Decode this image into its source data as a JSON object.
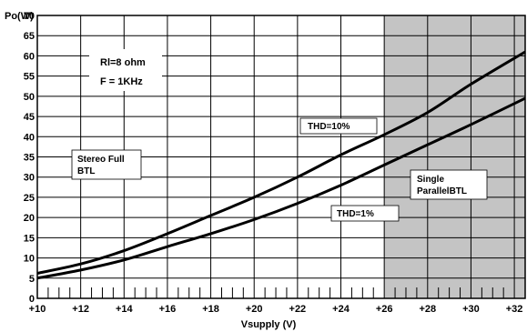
{
  "chart_data": {
    "type": "line",
    "xlabel": "Vsupply (V)",
    "ylabel": "Po(W)",
    "xlim": [
      10,
      32.5
    ],
    "ylim": [
      0,
      70
    ],
    "x_ticks": [
      10,
      12,
      14,
      16,
      18,
      20,
      22,
      24,
      26,
      28,
      30,
      32
    ],
    "x_tick_labels": [
      "+10",
      "+12",
      "+14",
      "+16",
      "+18",
      "+20",
      "+22",
      "+24",
      "+26",
      "+28",
      "+30",
      "+32"
    ],
    "y_ticks": [
      0,
      5,
      10,
      15,
      20,
      25,
      30,
      35,
      40,
      45,
      50,
      55,
      60,
      65,
      70
    ],
    "y_tick_labels": [
      "0",
      "5",
      "10",
      "15",
      "20",
      "25",
      "30",
      "35",
      "40",
      "45",
      "50",
      "55",
      "60",
      "65",
      "70"
    ],
    "grid": true,
    "shaded_region": {
      "x_from": 26,
      "x_to": 32.5,
      "color": "#c4c4c4"
    },
    "series": [
      {
        "name": "THD=10%",
        "x": [
          10,
          12,
          14,
          16,
          18,
          20,
          22,
          24,
          26,
          28,
          30,
          32.5
        ],
        "y": [
          6.2,
          8.5,
          11.8,
          16.0,
          20.5,
          25.0,
          30.0,
          35.5,
          40.5,
          46.0,
          53.0,
          61.0
        ]
      },
      {
        "name": "THD=1%",
        "x": [
          10,
          12,
          14,
          16,
          18,
          20,
          22,
          24,
          26,
          28,
          30,
          32.5
        ],
        "y": [
          5.0,
          7.0,
          9.5,
          12.8,
          16.0,
          19.5,
          23.5,
          28.0,
          33.0,
          38.0,
          43.0,
          49.5
        ]
      }
    ],
    "annotations": {
      "rl": "Rl=8 ohm",
      "freq": "F = 1KHz",
      "stereo_line1": "Stereo Full",
      "stereo_line2": "BTL",
      "single_line1": "Single",
      "single_line2": "ParallelBTL"
    },
    "colors": {
      "line": "#000000",
      "grid": "#000000",
      "shade": "#c4c4c4"
    }
  }
}
